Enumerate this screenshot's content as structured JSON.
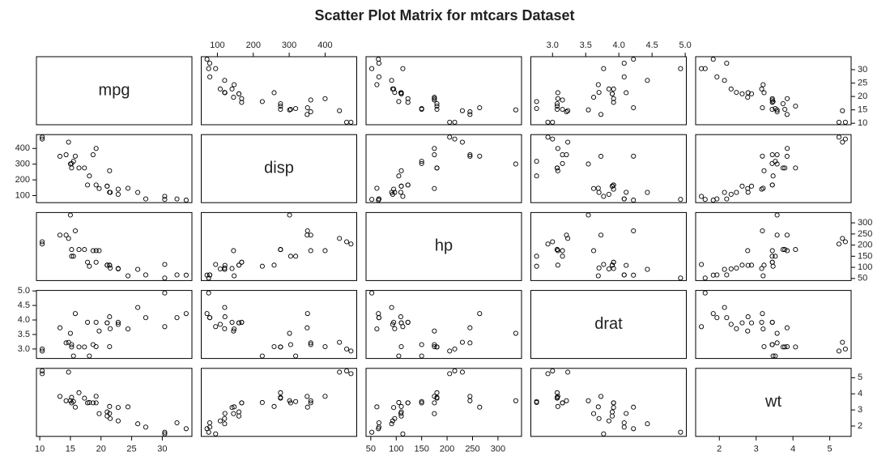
{
  "chart_data": {
    "type": "scatter_matrix",
    "title": "Scatter Plot Matrix for mtcars Dataset",
    "variables": [
      {
        "name": "mpg",
        "values": [
          21.0,
          21.0,
          22.8,
          21.4,
          18.7,
          18.1,
          14.3,
          24.4,
          22.8,
          19.2,
          17.8,
          16.4,
          17.3,
          15.2,
          10.4,
          10.4,
          14.7,
          32.4,
          30.4,
          33.9,
          21.5,
          15.5,
          15.2,
          13.3,
          19.2,
          27.3,
          26.0,
          30.4,
          15.8,
          19.7,
          15.0,
          21.4
        ],
        "lim": [
          9.46,
          34.84
        ],
        "ticks": [
          10,
          15,
          20,
          25,
          30
        ]
      },
      {
        "name": "disp",
        "values": [
          160,
          160,
          108,
          258,
          360,
          225,
          360,
          146.7,
          140.8,
          167.6,
          167.6,
          275.8,
          275.8,
          275.8,
          472,
          460,
          440,
          78.7,
          75.7,
          71.1,
          120.1,
          318,
          304,
          350,
          400,
          79,
          120.3,
          95.1,
          351,
          145,
          301,
          121
        ],
        "lim": [
          55.06,
          488.04
        ],
        "ticks": [
          100,
          200,
          300,
          400
        ]
      },
      {
        "name": "hp",
        "values": [
          110,
          110,
          93,
          110,
          175,
          105,
          245,
          62,
          95,
          123,
          123,
          180,
          180,
          180,
          205,
          215,
          230,
          66,
          52,
          65,
          97,
          150,
          150,
          245,
          175,
          66,
          91,
          113,
          264,
          175,
          335,
          109
        ],
        "lim": [
          40.68,
          346.32
        ],
        "ticks": [
          50,
          100,
          150,
          200,
          250,
          300
        ]
      },
      {
        "name": "drat",
        "values": [
          3.9,
          3.9,
          3.85,
          3.08,
          3.15,
          2.76,
          3.21,
          3.69,
          3.92,
          3.92,
          3.92,
          3.07,
          3.07,
          3.07,
          2.93,
          3.0,
          3.23,
          4.08,
          4.93,
          4.22,
          3.7,
          2.76,
          3.15,
          3.73,
          3.08,
          4.08,
          4.43,
          3.77,
          4.22,
          3.62,
          3.54,
          4.11
        ],
        "lim": [
          2.6732,
          5.0168
        ],
        "ticks": [
          {
            "value": 3,
            "label": "3.0"
          },
          {
            "value": 3.5,
            "label": "3.5"
          },
          {
            "value": 4,
            "label": "4.0"
          },
          {
            "value": 4.5,
            "label": "4.5"
          },
          {
            "value": 5,
            "label": "5.0"
          }
        ]
      },
      {
        "name": "wt",
        "values": [
          2.62,
          2.875,
          2.32,
          3.215,
          3.44,
          3.46,
          3.57,
          3.19,
          3.15,
          3.44,
          3.44,
          4.07,
          3.73,
          3.78,
          5.25,
          5.424,
          5.345,
          2.2,
          1.615,
          1.835,
          2.465,
          3.52,
          3.435,
          3.84,
          3.845,
          1.935,
          2.14,
          1.513,
          3.17,
          2.77,
          3.57,
          2.78
        ],
        "lim": [
          1.35656,
          5.58044
        ],
        "ticks": [
          2,
          3,
          4,
          5
        ]
      }
    ]
  }
}
